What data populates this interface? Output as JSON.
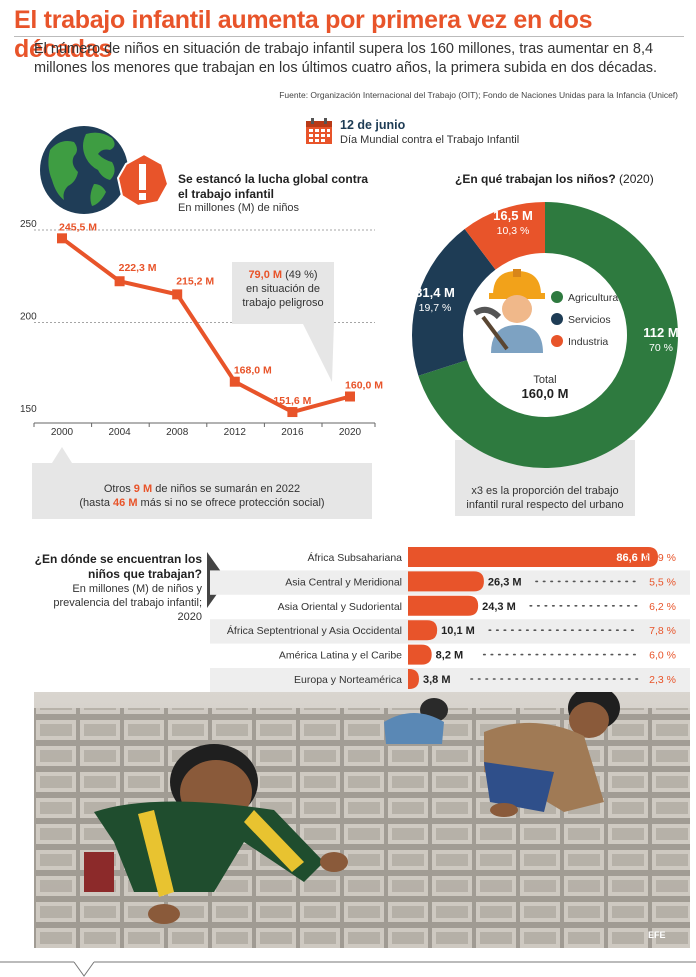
{
  "header": {
    "title": "El trabajo infantil aumenta por primera vez en dos décadas",
    "lead": "El número de niños en situación de trabajo infantil supera los 160 millones, tras aumentar en 8,4 millones los menores que trabajan en los últimos cuatro años, la primera subida en dos décadas.",
    "source": "Fuente: Organización Internacional del Trabajo (OIT); Fondo de Naciones Unidas para la Infancia (Unicef)"
  },
  "date_box": {
    "date": "12 de junio",
    "label": "Día Mundial contra el Trabajo Infantil"
  },
  "colors": {
    "orange": "#e8542a",
    "green": "#2e7a3f",
    "navy": "#1e3c55",
    "gray": "#e6e6e6"
  },
  "chart_data": [
    {
      "type": "line",
      "title": "Se estancó la lucha global contra el trabajo infantil",
      "subtitle": "En millones (M) de niños",
      "x": [
        "2000",
        "2004",
        "2008",
        "2012",
        "2016",
        "2020"
      ],
      "values": [
        245.5,
        222.3,
        215.2,
        168.0,
        151.6,
        160.0
      ],
      "data_labels": [
        "245,5 M",
        "222,3 M",
        "215,2 M",
        "168,0 M",
        "151,6 M",
        "160,0 M"
      ],
      "y_ticks": [
        "250",
        "200",
        "150"
      ],
      "ylim": [
        150,
        250
      ],
      "callout": {
        "value": "79,0 M",
        "pct": "(49 %)",
        "text_1": "en situación de",
        "text_2": "trabajo peligroso"
      },
      "note": {
        "pre": "Otros ",
        "value_1": "9 M",
        "mid": " de niños se sumarán en 2022",
        "line2_pre": "(hasta ",
        "value_2": "46 M",
        "line2_post": " más si no se ofrece protección social)"
      }
    },
    {
      "type": "pie",
      "title": "¿En qué trabajan los niños?",
      "title_suffix": "(2020)",
      "slices": [
        {
          "name": "Agricultura",
          "value": 112,
          "label": "112 M",
          "pct": "70 %",
          "color": "#2e7a3f"
        },
        {
          "name": "Servicios",
          "value": 31.4,
          "label": "31,4 M",
          "pct": "19,7 %",
          "color": "#1e3c55"
        },
        {
          "name": "Industria",
          "value": 16.5,
          "label": "16,5 M",
          "pct": "10,3 %",
          "color": "#e8542a"
        }
      ],
      "total_label": "Total",
      "total_value": "160,0 M",
      "note": "x3 es la proporción del trabajo infantil rural respecto del urbano"
    },
    {
      "type": "bar",
      "title": "¿En dónde se encuentran los niños que trabajan?",
      "subtitle": "En millones (M) de niños y prevalencia del trabajo infantil; 2020",
      "categories": [
        "África Subsahariana",
        "Asia Central y Meridional",
        "Asia Oriental y Sudoriental",
        "África Septentrional y Asia Occidental",
        "América Latina y el Caribe",
        "Europa y Norteamérica"
      ],
      "values": [
        86.6,
        26.3,
        24.3,
        10.1,
        8.2,
        3.8
      ],
      "value_labels": [
        "86,6 M",
        "26,3 M",
        "24,3 M",
        "10,1 M",
        "8,2 M",
        "3,8 M"
      ],
      "prevalence": [
        "23,9 %",
        "5,5 %",
        "6,2 %",
        "7,8 %",
        "6,0 %",
        "2,3 %"
      ]
    }
  ],
  "photo": {
    "description": "brick-field-children-photo",
    "credit": "EFE"
  }
}
